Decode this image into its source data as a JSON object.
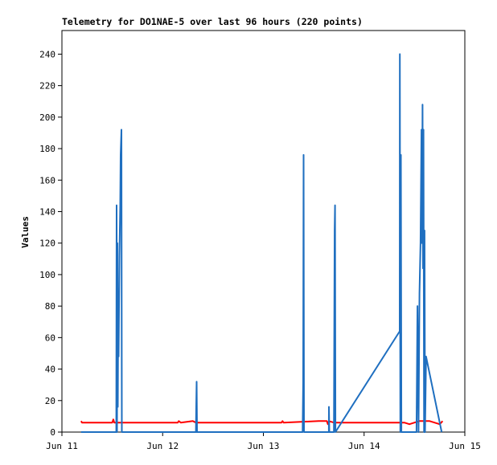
{
  "chart_data": {
    "type": "line",
    "title": "Telemetry for DO1NAE-5 over last 96 hours (220 points)",
    "y_label": "Values",
    "xlim": [
      0,
      4
    ],
    "xticks": [
      {
        "value": 0,
        "label": "Jun 11"
      },
      {
        "value": 1,
        "label": "Jun 12"
      },
      {
        "value": 2,
        "label": "Jun 13"
      },
      {
        "value": 3,
        "label": "Jun 14"
      },
      {
        "value": 4,
        "label": "Jun 15"
      }
    ],
    "ylim": [
      0,
      255
    ],
    "yticks": [
      0,
      20,
      40,
      60,
      80,
      100,
      120,
      140,
      160,
      180,
      200,
      220,
      240
    ],
    "grid": false,
    "series": [
      {
        "color": "#ff0000",
        "x": [
          0.19,
          0.2,
          0.5,
          0.51,
          0.52,
          1.15,
          1.16,
          1.18,
          1.3,
          1.33,
          2.18,
          2.19,
          2.2,
          2.55,
          2.63,
          2.64,
          2.65,
          2.7,
          3.4,
          3.45,
          3.5,
          3.55,
          3.65,
          3.75,
          3.78
        ],
        "values": [
          7,
          6,
          6,
          8,
          6,
          6,
          7,
          6,
          7,
          6,
          6,
          7,
          6,
          7,
          7,
          5,
          7,
          6,
          6,
          5,
          6,
          7,
          7,
          5,
          7
        ]
      },
      {
        "color": "#1f6fc0",
        "x": [
          0.19,
          0.54,
          0.543,
          0.547,
          0.551,
          0.555,
          0.559,
          0.563,
          0.571,
          0.579,
          0.583,
          0.591,
          0.595,
          1.33,
          1.333,
          1.337,
          1.341,
          2.39,
          2.395,
          2.399,
          2.403,
          2.65,
          2.651,
          2.655,
          2.7,
          2.707,
          2.711,
          2.715,
          3.353,
          3.355,
          3.36,
          3.365,
          3.37,
          3.52,
          3.53,
          3.54,
          3.55,
          3.56,
          3.565,
          3.57,
          3.575,
          3.58,
          3.585,
          3.59,
          3.595,
          3.6,
          3.605,
          3.615,
          3.77
        ],
        "values": [
          0,
          0,
          144,
          0,
          120,
          16,
          80,
          48,
          112,
          144,
          176,
          192,
          0,
          0,
          16,
          32,
          0,
          0,
          32,
          176,
          0,
          0,
          16,
          0,
          0,
          128,
          144,
          0,
          64,
          240,
          0,
          176,
          0,
          0,
          80,
          0,
          88,
          120,
          156,
          192,
          120,
          208,
          104,
          192,
          0,
          128,
          0,
          48,
          0
        ]
      }
    ]
  }
}
